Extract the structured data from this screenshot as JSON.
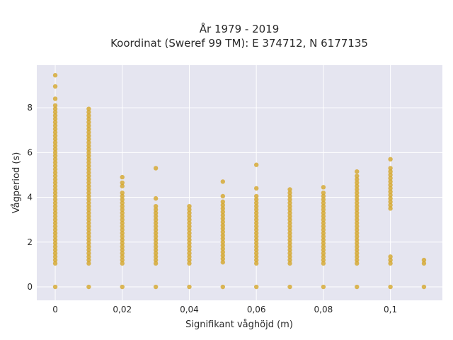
{
  "chart_data": {
    "type": "scatter",
    "title": "År 1979 - 2019",
    "subtitle": "Koordinat (Sweref 99 TM): E 374712, N 6177135",
    "xlabel": "Signifikant våghöjd (m)",
    "ylabel": "Vågperiod (s)",
    "xlim": [
      -0.0055,
      0.1155
    ],
    "ylim": [
      -0.6,
      9.9
    ],
    "x_ticks": [
      0,
      0.02,
      0.04,
      0.06,
      0.08,
      0.1
    ],
    "x_tick_labels": [
      "0",
      "0,02",
      "0,04",
      "0,06",
      "0,08",
      "0,1"
    ],
    "y_ticks": [
      0,
      2,
      4,
      6,
      8
    ],
    "y_tick_labels": [
      "0",
      "2",
      "4",
      "6",
      "8"
    ],
    "grid": true,
    "marker_color": "#D4A62A",
    "plot_background": "#E5E5F0",
    "columns": [
      {
        "x": 0,
        "zero": true,
        "min": 1.05,
        "max": 8.1,
        "extra": [
          8.4,
          8.95,
          9.45
        ]
      },
      {
        "x": 0.01,
        "zero": true,
        "min": 1.05,
        "max": 7.95,
        "extra": []
      },
      {
        "x": 0.02,
        "zero": true,
        "min": 1.05,
        "max": 4.2,
        "extra": [
          4.5,
          4.65,
          4.9
        ]
      },
      {
        "x": 0.03,
        "zero": true,
        "min": 1.05,
        "max": 3.7,
        "extra": [
          3.95,
          5.3
        ]
      },
      {
        "x": 0.04,
        "zero": true,
        "min": 1.05,
        "max": 3.6,
        "extra": []
      },
      {
        "x": 0.05,
        "zero": true,
        "min": 1.1,
        "max": 3.8,
        "extra": [
          4.05,
          4.7
        ]
      },
      {
        "x": 0.06,
        "zero": true,
        "min": 1.05,
        "max": 4.1,
        "extra": [
          4.4,
          5.45
        ]
      },
      {
        "x": 0.07,
        "zero": true,
        "min": 1.05,
        "max": 4.4,
        "extra": []
      },
      {
        "x": 0.08,
        "zero": true,
        "min": 1.05,
        "max": 4.25,
        "extra": [
          4.45
        ]
      },
      {
        "x": 0.09,
        "zero": true,
        "min": 1.05,
        "max": 4.95,
        "extra": [
          5.15
        ]
      },
      {
        "x": 0.1,
        "zero": true,
        "min": 3.5,
        "max": 5.35,
        "extra": [
          5.7,
          1.05,
          1.2,
          1.35
        ]
      },
      {
        "x": 0.11,
        "zero": true,
        "min": 1.05,
        "max": 1.2,
        "extra": []
      }
    ]
  }
}
